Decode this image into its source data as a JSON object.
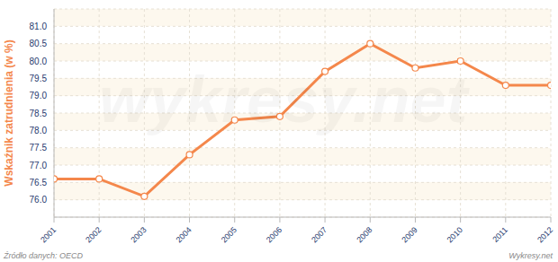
{
  "chart_data": {
    "type": "line",
    "y_label": "Wskaźnik zatrudnienia (w %)",
    "source": "Źródło danych: OECD",
    "credit": "Wykresy.net",
    "watermark": "wykresy.net",
    "x": [
      2001,
      2002,
      2003,
      2004,
      2005,
      2006,
      2007,
      2008,
      2009,
      2010,
      2011,
      2012
    ],
    "xlim": [
      2001,
      2012
    ],
    "xticks": [
      2001,
      2002,
      2003,
      2004,
      2005,
      2006,
      2007,
      2008,
      2009,
      2010,
      2011,
      2012
    ],
    "values": [
      76.6,
      76.6,
      76.1,
      77.3,
      78.3,
      78.4,
      79.7,
      80.5,
      79.8,
      80.0,
      79.3,
      79.3
    ],
    "color": "#f4874b",
    "marker": "circle",
    "ylim": [
      75.5,
      81.5
    ],
    "yticks": [
      {
        "value": 76,
        "label": "76.0"
      },
      {
        "value": 76.5,
        "label": "76.5"
      },
      {
        "value": 77,
        "label": "77.0"
      },
      {
        "value": 77.5,
        "label": "77.5"
      },
      {
        "value": 78,
        "label": "78.0"
      },
      {
        "value": 78.5,
        "label": "78.5"
      },
      {
        "value": 79,
        "label": "79.0"
      },
      {
        "value": 79.5,
        "label": "79.5"
      },
      {
        "value": 80,
        "label": "80.0"
      },
      {
        "value": 80.5,
        "label": "80.5"
      },
      {
        "value": 81,
        "label": "81.0"
      }
    ],
    "grid": true
  }
}
